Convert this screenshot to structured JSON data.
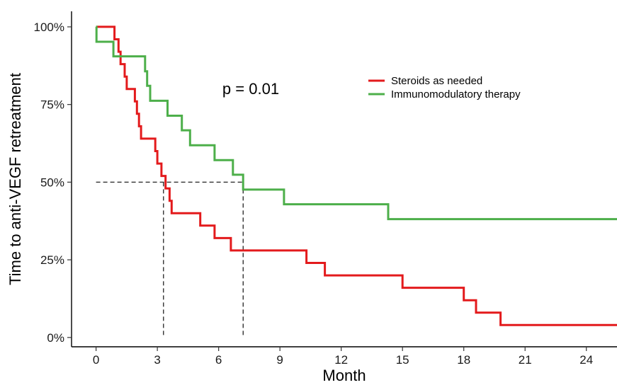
{
  "chart_data": {
    "type": "line",
    "title": "",
    "xlabel": "Month",
    "ylabel": "Time to anti-VEGF retreatment",
    "xlim": [
      -1.2,
      25.5
    ],
    "ylim": [
      -0.03,
      1.05
    ],
    "x_ticks": [
      0,
      3,
      6,
      9,
      12,
      15,
      18,
      21,
      24
    ],
    "x_tick_labels": [
      "0",
      "3",
      "6",
      "9",
      "12",
      "15",
      "18",
      "21",
      "24"
    ],
    "y_ticks": [
      0,
      0.25,
      0.5,
      0.75,
      1.0
    ],
    "y_tick_labels": [
      "0%",
      "25%",
      "50%",
      "75%",
      "100%"
    ],
    "grid": false,
    "legend_position": "top-right",
    "annotation": "p = 0.01",
    "median_lines": [
      {
        "x": 3.3,
        "y": 0.5
      },
      {
        "x": 7.2,
        "y": 0.5
      }
    ],
    "series": [
      {
        "name": "Steroids as needed",
        "color": "#e31a1c",
        "step_points": [
          [
            0,
            1.0
          ],
          [
            0.9,
            0.96
          ],
          [
            1.1,
            0.92
          ],
          [
            1.2,
            0.88
          ],
          [
            1.4,
            0.84
          ],
          [
            1.5,
            0.8
          ],
          [
            1.9,
            0.76
          ],
          [
            2.0,
            0.72
          ],
          [
            2.1,
            0.68
          ],
          [
            2.2,
            0.64
          ],
          [
            2.9,
            0.6
          ],
          [
            3.0,
            0.56
          ],
          [
            3.2,
            0.52
          ],
          [
            3.4,
            0.48
          ],
          [
            3.6,
            0.44
          ],
          [
            3.7,
            0.4
          ],
          [
            5.1,
            0.36
          ],
          [
            5.8,
            0.32
          ],
          [
            6.6,
            0.28
          ],
          [
            10.3,
            0.24
          ],
          [
            11.2,
            0.2
          ],
          [
            15.0,
            0.16
          ],
          [
            18.0,
            0.12
          ],
          [
            18.6,
            0.08
          ],
          [
            19.8,
            0.04
          ],
          [
            25.5,
            0.04
          ]
        ]
      },
      {
        "name": "Immunomodulatory therapy",
        "color": "#4daf4a",
        "step_points": [
          [
            0,
            1.0
          ],
          [
            0.02,
            0.952
          ],
          [
            0.85,
            0.905
          ],
          [
            2.4,
            0.857
          ],
          [
            2.5,
            0.81
          ],
          [
            2.65,
            0.762
          ],
          [
            3.5,
            0.714
          ],
          [
            4.2,
            0.667
          ],
          [
            4.6,
            0.619
          ],
          [
            5.8,
            0.571
          ],
          [
            6.7,
            0.524
          ],
          [
            7.2,
            0.476
          ],
          [
            9.2,
            0.429
          ],
          [
            14.3,
            0.381
          ],
          [
            25.5,
            0.381
          ]
        ]
      }
    ]
  }
}
